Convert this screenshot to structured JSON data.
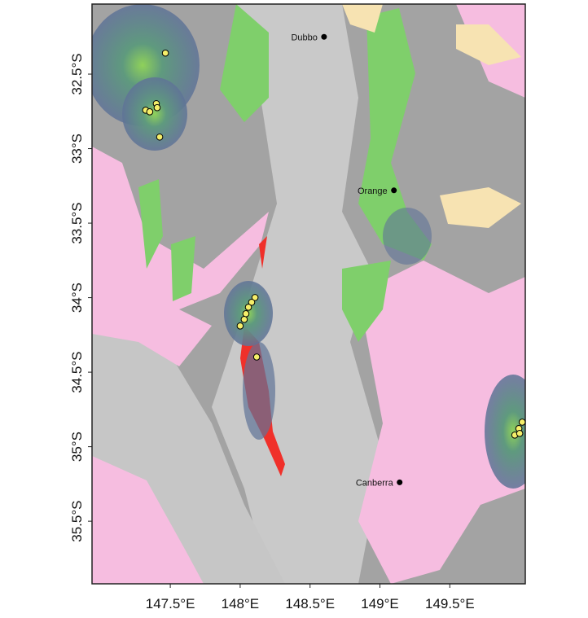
{
  "chart_data": {
    "type": "map",
    "xlim": [
      146.94,
      150.04
    ],
    "ylim": [
      -35.92,
      -32.03
    ],
    "xticks": [
      {
        "value": 147.5,
        "label": "147.5°E"
      },
      {
        "value": 148,
        "label": "148°E"
      },
      {
        "value": 148.5,
        "label": "148.5°E"
      },
      {
        "value": 149,
        "label": "149°E"
      },
      {
        "value": 149.5,
        "label": "149.5°E"
      }
    ],
    "yticks": [
      {
        "value": -32.5,
        "label": "32.5°S"
      },
      {
        "value": -33,
        "label": "33°S"
      },
      {
        "value": -33.5,
        "label": "33.5°S"
      },
      {
        "value": -34,
        "label": "34°S"
      },
      {
        "value": -34.5,
        "label": "34.5°S"
      },
      {
        "value": -35,
        "label": "35°S"
      },
      {
        "value": -35.5,
        "label": "35.5°S"
      }
    ],
    "cities": [
      {
        "name": "Dubbo",
        "lon": 148.6,
        "lat": -32.25
      },
      {
        "name": "Orange",
        "lon": 149.1,
        "lat": -33.28
      },
      {
        "name": "Canberra",
        "lon": 149.141,
        "lat": -35.239
      }
    ],
    "points": {
      "color": "#f5ef6a",
      "lon": [
        147.465,
        147.324,
        147.353,
        147.4,
        147.406,
        147.424,
        148.106,
        148.082,
        148.059,
        148.041,
        148.029,
        148.0,
        148.118,
        150.018,
        149.994,
        149.965,
        150.0
      ],
      "lat": [
        -32.359,
        -32.742,
        -32.753,
        -32.698,
        -32.725,
        -32.922,
        -33.999,
        -34.031,
        -34.064,
        -34.108,
        -34.146,
        -34.19,
        -34.398,
        -34.835,
        -34.878,
        -34.922,
        -34.911
      ]
    }
  }
}
